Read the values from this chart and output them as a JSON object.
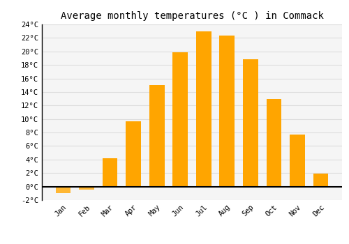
{
  "title": "Average monthly temperatures (°C ) in Commack",
  "months": [
    "Jan",
    "Feb",
    "Mar",
    "Apr",
    "May",
    "Jun",
    "Jul",
    "Aug",
    "Sep",
    "Oct",
    "Nov",
    "Dec"
  ],
  "values": [
    -1.0,
    -0.5,
    4.2,
    9.7,
    15.0,
    19.9,
    23.0,
    22.4,
    18.8,
    13.0,
    7.7,
    1.9
  ],
  "bar_color_pos": "#FFA500",
  "bar_color_neg": "#FFB733",
  "ylim": [
    -2,
    24
  ],
  "yticks": [
    -2,
    0,
    2,
    4,
    6,
    8,
    10,
    12,
    14,
    16,
    18,
    20,
    22,
    24
  ],
  "grid_color": "#dddddd",
  "bg_color": "#ffffff",
  "plot_bg_color": "#f5f5f5",
  "title_fontsize": 10,
  "tick_fontsize": 7.5,
  "bar_width": 0.65
}
